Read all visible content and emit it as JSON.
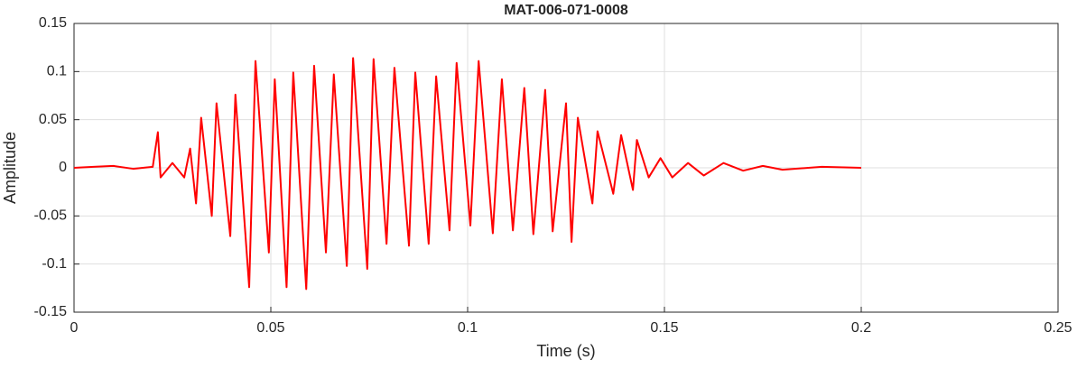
{
  "chart_data": {
    "type": "line",
    "title": "MAT-006-071-0008",
    "xlabel": "Time (s)",
    "ylabel": "Amplitude",
    "x": [
      0,
      0.005,
      0.01,
      0.015,
      0.02,
      0.0213,
      0.022,
      0.025,
      0.028,
      0.0295,
      0.031,
      0.0323,
      0.035,
      0.0362,
      0.0397,
      0.041,
      0.0445,
      0.0461,
      0.0495,
      0.051,
      0.054,
      0.0557,
      0.059,
      0.061,
      0.064,
      0.066,
      0.0693,
      0.0709,
      0.0745,
      0.0761,
      0.0794,
      0.0814,
      0.0851,
      0.0867,
      0.0901,
      0.092,
      0.0954,
      0.0972,
      0.1007,
      0.1028,
      0.1064,
      0.1087,
      0.1115,
      0.1144,
      0.1167,
      0.1197,
      0.1216,
      0.125,
      0.1264,
      0.128,
      0.1317,
      0.133,
      0.137,
      0.139,
      0.142,
      0.143,
      0.146,
      0.149,
      0.152,
      0.156,
      0.16,
      0.165,
      0.17,
      0.175,
      0.18,
      0.19,
      0.2
    ],
    "series": [
      {
        "name": "Amplitude",
        "color": "#ff0000",
        "values": [
          0,
          0.001,
          0.002,
          -0.001,
          0.001,
          0.037,
          -0.01,
          0.005,
          -0.01,
          0.02,
          -0.037,
          0.052,
          -0.05,
          0.067,
          -0.071,
          0.076,
          -0.124,
          0.111,
          -0.088,
          0.092,
          -0.124,
          0.099,
          -0.126,
          0.106,
          -0.088,
          0.097,
          -0.102,
          0.114,
          -0.105,
          0.113,
          -0.079,
          0.104,
          -0.081,
          0.099,
          -0.079,
          0.095,
          -0.065,
          0.109,
          -0.06,
          0.111,
          -0.068,
          0.092,
          -0.065,
          0.083,
          -0.069,
          0.081,
          -0.066,
          0.067,
          -0.077,
          0.052,
          -0.037,
          0.038,
          -0.027,
          0.034,
          -0.023,
          0.029,
          -0.01,
          0.01,
          -0.01,
          0.005,
          -0.008,
          0.005,
          -0.003,
          0.002,
          -0.002,
          0.001,
          0
        ]
      }
    ],
    "xlim": [
      0,
      0.25
    ],
    "xticks": [
      0,
      0.05,
      0.1,
      0.15,
      0.2,
      0.25
    ],
    "ylim": [
      -0.15,
      0.15
    ],
    "yticks": [
      -0.15,
      -0.1,
      -0.05,
      0,
      0.05,
      0.1,
      0.15
    ],
    "grid": true
  }
}
